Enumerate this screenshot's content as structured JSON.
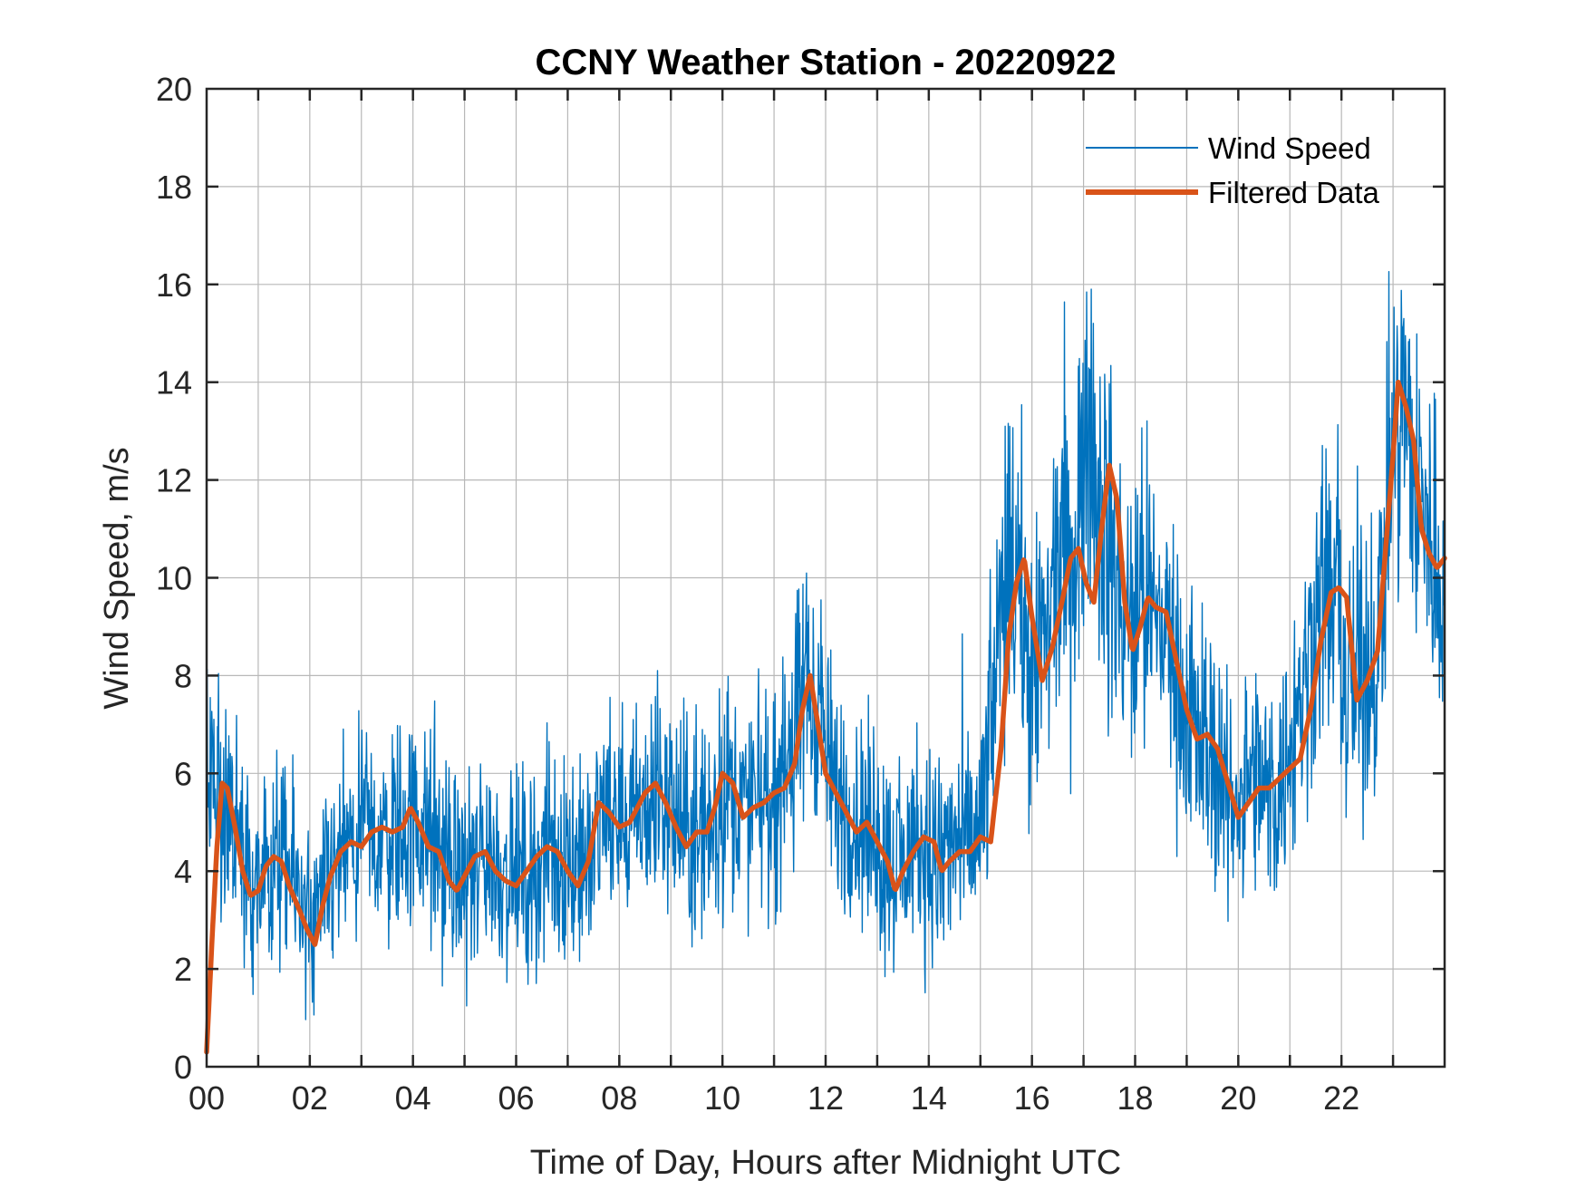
{
  "chart_data": {
    "type": "line",
    "title": "CCNY Weather Station - 20220922",
    "xlabel": "Time of Day, Hours after Midnight UTC",
    "ylabel": "Wind Speed, m/s",
    "xlim": [
      0,
      24
    ],
    "ylim": [
      0,
      20
    ],
    "xticks": [
      0,
      2,
      4,
      6,
      8,
      10,
      12,
      14,
      16,
      18,
      20,
      22
    ],
    "xtick_labels": [
      "00",
      "02",
      "04",
      "06",
      "08",
      "10",
      "12",
      "14",
      "16",
      "18",
      "20",
      "22"
    ],
    "yticks": [
      0,
      2,
      4,
      6,
      8,
      10,
      12,
      14,
      16,
      18,
      20
    ],
    "ytick_labels": [
      "0",
      "2",
      "4",
      "6",
      "8",
      "10",
      "12",
      "14",
      "16",
      "18",
      "20"
    ],
    "grid": true,
    "legend_position": "top-right",
    "series": [
      {
        "name": "Wind Speed",
        "color": "#0072BD",
        "style": "thin-noisy",
        "sample_interval_hours": 0.01,
        "noise_amplitude": 1.6,
        "x": [
          0,
          0.2,
          0.4,
          0.8,
          1.0,
          1.4,
          1.8,
          2.05,
          2.4,
          2.8,
          3.2,
          3.6,
          4.0,
          4.5,
          4.9,
          5.3,
          5.8,
          6.2,
          6.6,
          7.0,
          7.4,
          7.7,
          8.2,
          8.8,
          9.3,
          9.7,
          10.1,
          10.5,
          11.0,
          11.4,
          11.75,
          12.1,
          12.5,
          13.0,
          13.4,
          13.8,
          14.1,
          14.5,
          15.0,
          15.3,
          15.6,
          16.0,
          16.3,
          16.6,
          16.8,
          17.1,
          17.3,
          17.5,
          17.8,
          18.2,
          18.6,
          19.0,
          19.4,
          19.8,
          20.2,
          20.6,
          20.9,
          21.2,
          21.6,
          21.9,
          22.1,
          22.4,
          22.7,
          23.0,
          23.2,
          23.5,
          23.8,
          24.0
        ],
        "values": [
          6.2,
          5.6,
          5.2,
          4.0,
          3.6,
          4.2,
          3.6,
          2.6,
          3.8,
          4.5,
          4.7,
          4.8,
          5.0,
          4.4,
          3.8,
          4.3,
          4.0,
          3.9,
          4.4,
          4.3,
          4.1,
          5.3,
          4.9,
          5.6,
          4.8,
          4.8,
          5.8,
          5.2,
          5.6,
          6.6,
          8.2,
          5.8,
          5.2,
          4.6,
          4.0,
          4.6,
          4.2,
          4.5,
          4.7,
          8.0,
          10.6,
          8.0,
          9.2,
          10.5,
          9.8,
          13.5,
          12.0,
          10.4,
          9.0,
          9.5,
          9.0,
          7.0,
          6.6,
          5.3,
          5.8,
          5.6,
          6.0,
          7.5,
          9.8,
          9.6,
          7.6,
          7.8,
          9.0,
          12.5,
          13.5,
          11.5,
          10.5,
          10.2
        ]
      },
      {
        "name": "Filtered Data",
        "color": "#D95319",
        "style": "thick-smooth",
        "x": [
          0,
          0.1,
          0.2,
          0.3,
          0.4,
          0.55,
          0.7,
          0.85,
          1.0,
          1.15,
          1.3,
          1.45,
          1.6,
          1.8,
          1.95,
          2.1,
          2.25,
          2.4,
          2.6,
          2.8,
          3.0,
          3.2,
          3.4,
          3.6,
          3.8,
          3.95,
          4.1,
          4.3,
          4.5,
          4.7,
          4.85,
          5.0,
          5.2,
          5.4,
          5.6,
          5.8,
          6.0,
          6.2,
          6.4,
          6.6,
          6.8,
          7.0,
          7.2,
          7.4,
          7.6,
          7.8,
          8.0,
          8.2,
          8.5,
          8.7,
          8.9,
          9.1,
          9.3,
          9.5,
          9.7,
          9.85,
          10.0,
          10.2,
          10.4,
          10.6,
          10.8,
          11.0,
          11.2,
          11.4,
          11.55,
          11.7,
          11.85,
          12.0,
          12.2,
          12.4,
          12.6,
          12.8,
          13.0,
          13.2,
          13.35,
          13.5,
          13.7,
          13.9,
          14.1,
          14.25,
          14.4,
          14.6,
          14.8,
          15.0,
          15.2,
          15.4,
          15.55,
          15.7,
          15.85,
          16.0,
          16.2,
          16.4,
          16.6,
          16.75,
          16.9,
          17.05,
          17.2,
          17.35,
          17.5,
          17.65,
          17.8,
          17.95,
          18.1,
          18.25,
          18.4,
          18.6,
          18.8,
          19.0,
          19.2,
          19.4,
          19.6,
          19.8,
          20.0,
          20.2,
          20.4,
          20.6,
          20.8,
          21.0,
          21.2,
          21.4,
          21.6,
          21.8,
          21.95,
          22.1,
          22.3,
          22.5,
          22.7,
          22.85,
          23.0,
          23.1,
          23.25,
          23.4,
          23.55,
          23.7,
          23.85,
          24.0
        ],
        "values": [
          0.3,
          2.5,
          4.5,
          5.8,
          5.7,
          4.9,
          4.0,
          3.5,
          3.6,
          4.1,
          4.3,
          4.2,
          3.7,
          3.2,
          2.8,
          2.5,
          3.3,
          3.9,
          4.4,
          4.6,
          4.5,
          4.8,
          4.9,
          4.8,
          4.9,
          5.3,
          5.0,
          4.5,
          4.4,
          3.8,
          3.6,
          3.9,
          4.3,
          4.4,
          4.0,
          3.8,
          3.7,
          4.0,
          4.3,
          4.5,
          4.4,
          4.0,
          3.7,
          4.2,
          5.4,
          5.2,
          4.9,
          5.0,
          5.6,
          5.8,
          5.4,
          4.9,
          4.5,
          4.8,
          4.8,
          5.3,
          6.0,
          5.8,
          5.1,
          5.3,
          5.4,
          5.6,
          5.7,
          6.2,
          7.3,
          8.0,
          7.0,
          6.0,
          5.6,
          5.2,
          4.8,
          5.0,
          4.6,
          4.2,
          3.6,
          4.0,
          4.4,
          4.7,
          4.6,
          4.0,
          4.2,
          4.4,
          4.4,
          4.7,
          4.6,
          6.5,
          8.8,
          9.9,
          10.4,
          9.2,
          7.9,
          8.6,
          9.6,
          10.4,
          10.6,
          9.9,
          9.5,
          11.0,
          12.3,
          11.6,
          9.5,
          8.5,
          9.0,
          9.6,
          9.4,
          9.3,
          8.3,
          7.3,
          6.7,
          6.8,
          6.5,
          5.8,
          5.1,
          5.4,
          5.7,
          5.7,
          5.9,
          6.1,
          6.3,
          7.3,
          8.7,
          9.7,
          9.8,
          9.6,
          7.5,
          7.9,
          8.5,
          10.5,
          12.5,
          14.0,
          13.5,
          12.8,
          11.0,
          10.5,
          10.2,
          10.4
        ]
      }
    ]
  }
}
